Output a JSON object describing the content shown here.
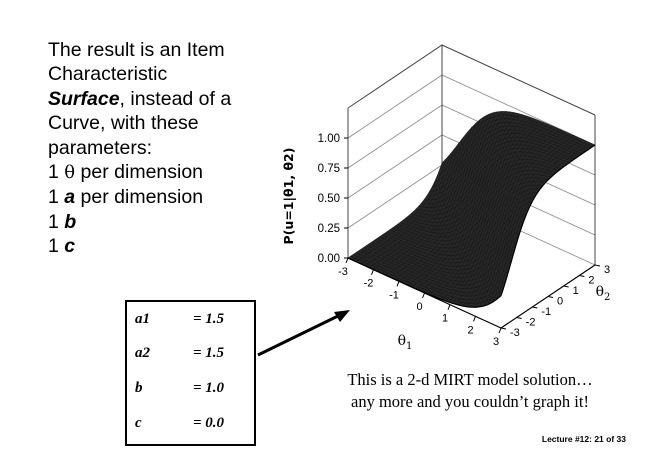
{
  "slide": {
    "bullet_lines": [
      {
        "text": "The result is an Item",
        "style": "plain"
      },
      {
        "text": "Characteristic",
        "style": "plain"
      },
      {
        "parts": [
          "Surface",
          ", instead of a"
        ],
        "style": "mixed"
      },
      {
        "text": "Curve, with these",
        "style": "plain"
      },
      {
        "text": "parameters:",
        "style": "plain"
      }
    ],
    "param_lines": [
      {
        "num": "1",
        "sym": "θ",
        "rest": " per dimension"
      },
      {
        "num": "1",
        "sym": "a",
        "rest": " per dimension"
      },
      {
        "num": "1",
        "sym": "b",
        "rest": ""
      },
      {
        "num": "1",
        "sym": "c",
        "rest": ""
      }
    ],
    "param_box": [
      {
        "name": "a1",
        "value": "= 1.5"
      },
      {
        "name": "a2",
        "value": "= 1.5"
      },
      {
        "name": "b",
        "value": "= 1.0"
      },
      {
        "name": "c",
        "value": "= 0.0"
      }
    ],
    "caption": {
      "line1": "This is a 2-d MIRT model solution…",
      "line2": "any more and you couldn’t graph it!"
    },
    "footer": "Lecture #12: 21 of 33"
  },
  "chart_data": {
    "type": "surface",
    "zlabel": "P(u=1|θ1, θ2)",
    "xlabel": "θ1",
    "ylabel": "θ2",
    "z_ticks": [
      "0.00",
      "0.25",
      "0.50",
      "0.75",
      "1.00"
    ],
    "theta1_ticks": [
      "-3",
      "-2",
      "-1",
      "0",
      "1",
      "2",
      "3"
    ],
    "theta2_ticks": [
      "-3",
      "-2",
      "-1",
      "0",
      "1",
      "2",
      "3"
    ],
    "parameters": {
      "a1": 1.5,
      "a2": 1.5,
      "b": 1.0,
      "c": 0.0
    },
    "range": {
      "theta1": [
        -3,
        3
      ],
      "theta2": [
        -3,
        3
      ],
      "p": [
        0,
        1
      ]
    },
    "surface_color": "#262626"
  }
}
